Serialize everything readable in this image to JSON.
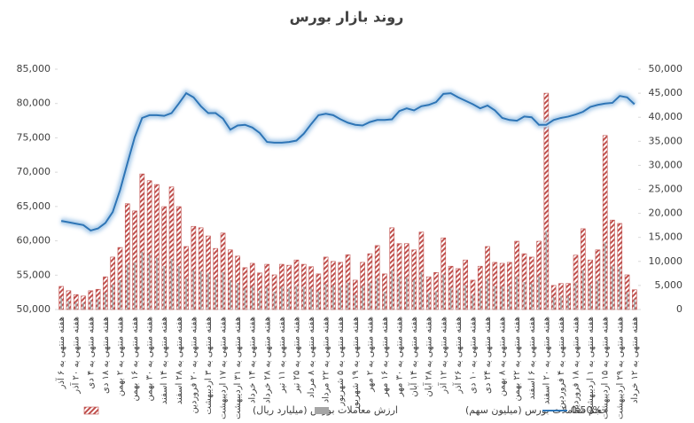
{
  "chart_data": {
    "type": "bar-line",
    "title": "روند بازار بورس",
    "categories": [
      "هفته منتهی به ۶ آذر",
      null,
      "هفته منتهی به ۲۰ آذر",
      null,
      "هفته منتهی به ۴ دی",
      null,
      "هفته منتهی به ۱۸ دی",
      null,
      "هفته منتهی به ۲ بهمن",
      null,
      "هفته منتهی به ۱۶ بهمن",
      null,
      "هفته منتهی به ۳۰ بهمن",
      null,
      "هفته منتهی به ۱۴ اسفند",
      null,
      "هفته منتهی به ۲۸ اسفند",
      null,
      "هفته منتهی به ۲۰ فروردین",
      null,
      "هفته منتهی به ۳ اردیبهشت",
      null,
      "هفته منتهی به ۱۷ اردیبهشت",
      null,
      "هفته منتهی به ۳۱ اردیبهشت",
      null,
      "هفته منتهی به ۱۴ خرداد",
      null,
      "هفته منتهی به ۲۸ خرداد",
      null,
      "هفته منتهی به ۱۱ تیر",
      null,
      "هفته منتهی به ۲۵ تیر",
      null,
      "هفته منتهی به ۸ مرداد",
      null,
      "هفته منتهی به ۲۲ مرداد",
      null,
      "هفته منتهی به ۵ شهریور",
      null,
      "هفته منتهی به ۱۹ شهریور",
      null,
      "هفته منتهی به ۲ مهر",
      null,
      "هفته منتهی به ۱۶ مهر",
      null,
      "هفته منتهی به ۳۰ مهر",
      null,
      "هفته منتهی به ۱۴ آبان",
      null,
      "هفته منتهی به ۲۸ آبان",
      null,
      "هفته منتهی به ۱۲ آذر",
      null,
      "هفته منتهی به ۲۶ آذر",
      null,
      "هفته منتهی به ۱۰ دی",
      null,
      "هفته منتهی به ۲۴ دی",
      null,
      "هفته منتهی به ۸ بهمن",
      null,
      "هفته منتهی به ۲۲ بهمن",
      null,
      "هفته منتهی به ۶ اسفند",
      null,
      "هفته منتهی به ۲۰ اسفند",
      null,
      "هفته منتهی به ۴ فروردین",
      null,
      "هفته منتهی به ۱۸ فروردین",
      null,
      "هفته منتهی به ۱ اردیبهشت",
      null,
      "هفته منتهی به ۱۵ اردیبهشت",
      null,
      "هفته منتهی به ۲۹ اردیبهشت",
      null,
      "هفته منتهی به ۱۲ خرداد"
    ],
    "series": [
      {
        "name": "ارزش معاملات بورس (میلیارد ریال)",
        "type": "bar",
        "color": "#c0504d",
        "axis": "y2",
        "values": [
          4800,
          3900,
          3100,
          2800,
          3900,
          4200,
          6800,
          10900,
          12900,
          22000,
          20500,
          28200,
          26800,
          26000,
          21400,
          25500,
          21400,
          13100,
          17300,
          17000,
          15300,
          12700,
          15900,
          12400,
          11100,
          8700,
          9600,
          7600,
          9400,
          7200,
          9400,
          9200,
          10300,
          9400,
          8900,
          7400,
          10900,
          10000,
          9800,
          11400,
          6100,
          9800,
          11600,
          13300,
          7400,
          17000,
          13700,
          13700,
          12400,
          16100,
          6800,
          7700,
          14900,
          9000,
          8500,
          10300,
          6100,
          9000,
          13100,
          9800,
          9600,
          9800,
          14200,
          11600,
          10900,
          14200,
          45000,
          5000,
          5400,
          5400,
          11300,
          16800,
          10300,
          12400,
          36200,
          18600,
          17900,
          7200,
          4100
        ]
      },
      {
        "name": "حجم معاملات بورس (میلیون سهم)",
        "type": "bar",
        "color": "#a5a5a5",
        "axis": "y2",
        "values": [
          2500,
          1800,
          1500,
          1400,
          2000,
          2200,
          3500,
          5200,
          6100,
          9500,
          9800,
          12000,
          11500,
          10800,
          9000,
          10500,
          9000,
          6500,
          8200,
          8000,
          7600,
          6300,
          7800,
          6100,
          5500,
          4300,
          4800,
          3900,
          4600,
          3700,
          4700,
          4500,
          5000,
          4700,
          4400,
          3800,
          5300,
          5000,
          4900,
          5600,
          3100,
          4900,
          5600,
          6500,
          3700,
          8200,
          6800,
          6700,
          6100,
          7800,
          3400,
          3800,
          7300,
          4500,
          4300,
          5100,
          3100,
          4500,
          6400,
          4900,
          4800,
          4900,
          6900,
          5700,
          5400,
          6900,
          16400,
          2600,
          2800,
          2800,
          5600,
          8200,
          5100,
          6100,
          14000,
          9100,
          8800,
          3600,
          2100
        ]
      },
      {
        "name": "0.50%",
        "type": "line",
        "color": "#2e75b6",
        "axis": "y",
        "values": [
          62900,
          62700,
          62500,
          62300,
          61500,
          61800,
          62600,
          64200,
          67400,
          71300,
          75100,
          77900,
          78300,
          78300,
          78200,
          78600,
          80000,
          81500,
          80900,
          79600,
          78600,
          78600,
          77800,
          76200,
          76800,
          76900,
          76500,
          75700,
          74400,
          74300,
          74300,
          74400,
          74600,
          75600,
          77000,
          78300,
          78500,
          78300,
          77700,
          77200,
          76900,
          76800,
          77300,
          77600,
          77600,
          77700,
          78900,
          79300,
          79000,
          79600,
          79800,
          80200,
          81400,
          81500,
          80900,
          80400,
          79900,
          79300,
          79700,
          79000,
          77900,
          77600,
          77500,
          78100,
          78000,
          76900,
          76900,
          77600,
          77900,
          78100,
          78400,
          78800,
          79500,
          79800,
          80000,
          80100,
          81100,
          80900,
          79900
        ]
      }
    ],
    "ylim": [
      50000,
      85000
    ],
    "yticks": [
      {
        "value": 50000,
        "label": "50,000"
      },
      {
        "value": 55000,
        "label": "55,000"
      },
      {
        "value": 60000,
        "label": "60,000"
      },
      {
        "value": 65000,
        "label": "65,000"
      },
      {
        "value": 70000,
        "label": "70,000"
      },
      {
        "value": 75000,
        "label": "75,000"
      },
      {
        "value": 80000,
        "label": "80,000"
      },
      {
        "value": 85000,
        "label": "85,000"
      }
    ],
    "y2lim": [
      0,
      50000
    ],
    "y2ticks": [
      0,
      {
        "value": 5000,
        "label": "5,000"
      },
      {
        "value": 10000,
        "label": "10,000"
      },
      {
        "value": 15000,
        "label": "15,000"
      },
      {
        "value": 20000,
        "label": "20,000"
      },
      {
        "value": 25000,
        "label": "25,000"
      },
      {
        "value": 30000,
        "label": "30,000"
      },
      {
        "value": 35000,
        "label": "35,000"
      },
      {
        "value": 40000,
        "label": "40,000"
      },
      {
        "value": 45000,
        "label": "45,000"
      },
      {
        "value": 50000,
        "label": "50,000"
      }
    ],
    "legend": "bottom"
  }
}
